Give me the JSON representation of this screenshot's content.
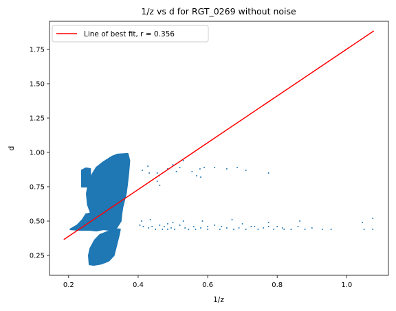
{
  "colors": {
    "scatter": "#1f77b4",
    "fit_line": "#ff0000",
    "axes": "#000000",
    "legend_border": "#cccccc"
  },
  "chart_data": {
    "type": "scatter",
    "title": "1/z vs d for RGT_0269 without noise",
    "xlabel": "1/z",
    "ylabel": "d",
    "xlim": [
      0.145,
      1.12
    ],
    "ylim": [
      0.105,
      1.955
    ],
    "xticks": [
      0.2,
      0.4,
      0.6,
      0.8,
      1.0
    ],
    "xtick_labels": [
      "0.2",
      "0.4",
      "0.6",
      "0.8",
      "1.0"
    ],
    "yticks": [
      0.25,
      0.5,
      0.75,
      1.0,
      1.25,
      1.5,
      1.75
    ],
    "ytick_labels": [
      "0.25",
      "0.50",
      "0.75",
      "1.00",
      "1.25",
      "1.50",
      "1.75"
    ],
    "grid": false,
    "legend": {
      "location": "upper left",
      "entries": [
        "Line of best fit, r = 0.356"
      ]
    },
    "series": [
      {
        "kind": "scatter",
        "dense_cluster": {
          "main_body": [
            [
              0.265,
              0.55
            ],
            [
              0.255,
              0.62
            ],
            [
              0.252,
              0.7
            ],
            [
              0.258,
              0.78
            ],
            [
              0.268,
              0.84
            ],
            [
              0.28,
              0.89
            ],
            [
              0.3,
              0.93
            ],
            [
              0.325,
              0.97
            ],
            [
              0.34,
              0.985
            ],
            [
              0.37,
              0.99
            ],
            [
              0.375,
              0.94
            ],
            [
              0.372,
              0.85
            ],
            [
              0.368,
              0.76
            ],
            [
              0.365,
              0.7
            ],
            [
              0.36,
              0.65
            ],
            [
              0.355,
              0.6
            ],
            [
              0.352,
              0.55
            ],
            [
              0.35,
              0.5
            ],
            [
              0.34,
              0.46
            ],
            [
              0.335,
              0.44
            ],
            [
              0.32,
              0.435
            ],
            [
              0.3,
              0.44
            ],
            [
              0.285,
              0.46
            ],
            [
              0.28,
              0.49
            ],
            [
              0.272,
              0.52
            ]
          ],
          "lower_left_band": [
            [
              0.205,
              0.44
            ],
            [
              0.225,
              0.47
            ],
            [
              0.24,
              0.51
            ],
            [
              0.25,
              0.55
            ],
            [
              0.268,
              0.56
            ],
            [
              0.28,
              0.48
            ],
            [
              0.3,
              0.44
            ],
            [
              0.28,
              0.43
            ],
            [
              0.26,
              0.435
            ],
            [
              0.23,
              0.435
            ]
          ],
          "lower_tail": [
            [
              0.262,
              0.3
            ],
            [
              0.258,
              0.25
            ],
            [
              0.26,
              0.185
            ],
            [
              0.272,
              0.18
            ],
            [
              0.295,
              0.19
            ],
            [
              0.315,
              0.21
            ],
            [
              0.33,
              0.25
            ],
            [
              0.335,
              0.3
            ],
            [
              0.34,
              0.35
            ],
            [
              0.345,
              0.4
            ],
            [
              0.348,
              0.44
            ],
            [
              0.33,
              0.44
            ],
            [
              0.31,
              0.42
            ],
            [
              0.29,
              0.4
            ],
            [
              0.275,
              0.36
            ]
          ],
          "left_spur": [
            [
              0.238,
              0.75
            ],
            [
              0.238,
              0.87
            ],
            [
              0.25,
              0.885
            ],
            [
              0.262,
              0.88
            ],
            [
              0.262,
              0.75
            ]
          ]
        },
        "points": [
          [
            0.412,
            0.87
          ],
          [
            0.428,
            0.9
          ],
          [
            0.432,
            0.85
          ],
          [
            0.455,
            0.79
          ],
          [
            0.462,
            0.76
          ],
          [
            0.46,
            0.83
          ],
          [
            0.485,
            0.88
          ],
          [
            0.5,
            0.91
          ],
          [
            0.52,
            0.89
          ],
          [
            0.53,
            0.94
          ],
          [
            0.555,
            0.86
          ],
          [
            0.578,
            0.88
          ],
          [
            0.568,
            0.83
          ],
          [
            0.59,
            0.89
          ],
          [
            0.62,
            0.89
          ],
          [
            0.655,
            0.88
          ],
          [
            0.685,
            0.89
          ],
          [
            0.775,
            0.85
          ],
          [
            0.455,
            0.85
          ],
          [
            0.51,
            0.86
          ],
          [
            0.58,
            0.82
          ],
          [
            0.71,
            0.87
          ],
          [
            0.405,
            0.47
          ],
          [
            0.415,
            0.46
          ],
          [
            0.43,
            0.45
          ],
          [
            0.44,
            0.46
          ],
          [
            0.45,
            0.44
          ],
          [
            0.462,
            0.47
          ],
          [
            0.475,
            0.46
          ],
          [
            0.485,
            0.44
          ],
          [
            0.495,
            0.45
          ],
          [
            0.505,
            0.44
          ],
          [
            0.52,
            0.47
          ],
          [
            0.535,
            0.45
          ],
          [
            0.545,
            0.44
          ],
          [
            0.56,
            0.46
          ],
          [
            0.58,
            0.45
          ],
          [
            0.6,
            0.44
          ],
          [
            0.62,
            0.47
          ],
          [
            0.64,
            0.46
          ],
          [
            0.655,
            0.45
          ],
          [
            0.675,
            0.44
          ],
          [
            0.69,
            0.45
          ],
          [
            0.71,
            0.44
          ],
          [
            0.725,
            0.46
          ],
          [
            0.745,
            0.44
          ],
          [
            0.76,
            0.45
          ],
          [
            0.775,
            0.46
          ],
          [
            0.79,
            0.44
          ],
          [
            0.815,
            0.45
          ],
          [
            0.84,
            0.44
          ],
          [
            0.86,
            0.46
          ],
          [
            0.88,
            0.44
          ],
          [
            0.9,
            0.45
          ],
          [
            0.93,
            0.44
          ],
          [
            0.955,
            0.44
          ],
          [
            1.05,
            0.44
          ],
          [
            1.075,
            0.44
          ],
          [
            0.41,
            0.5
          ],
          [
            0.435,
            0.51
          ],
          [
            0.5,
            0.49
          ],
          [
            0.53,
            0.5
          ],
          [
            0.585,
            0.5
          ],
          [
            0.67,
            0.51
          ],
          [
            0.7,
            0.48
          ],
          [
            0.775,
            0.49
          ],
          [
            0.865,
            0.5
          ],
          [
            1.045,
            0.49
          ],
          [
            1.075,
            0.52
          ],
          [
            0.485,
            0.48
          ],
          [
            0.6,
            0.46
          ],
          [
            0.735,
            0.46
          ],
          [
            0.8,
            0.46
          ],
          [
            0.82,
            0.44
          ],
          [
            0.635,
            0.44
          ],
          [
            0.565,
            0.44
          ],
          [
            0.47,
            0.44
          ]
        ]
      },
      {
        "kind": "line",
        "name": "Line of best fit, r = 0.356",
        "x": [
          0.186,
          1.078
        ],
        "y": [
          0.365,
          1.885
        ]
      }
    ]
  }
}
